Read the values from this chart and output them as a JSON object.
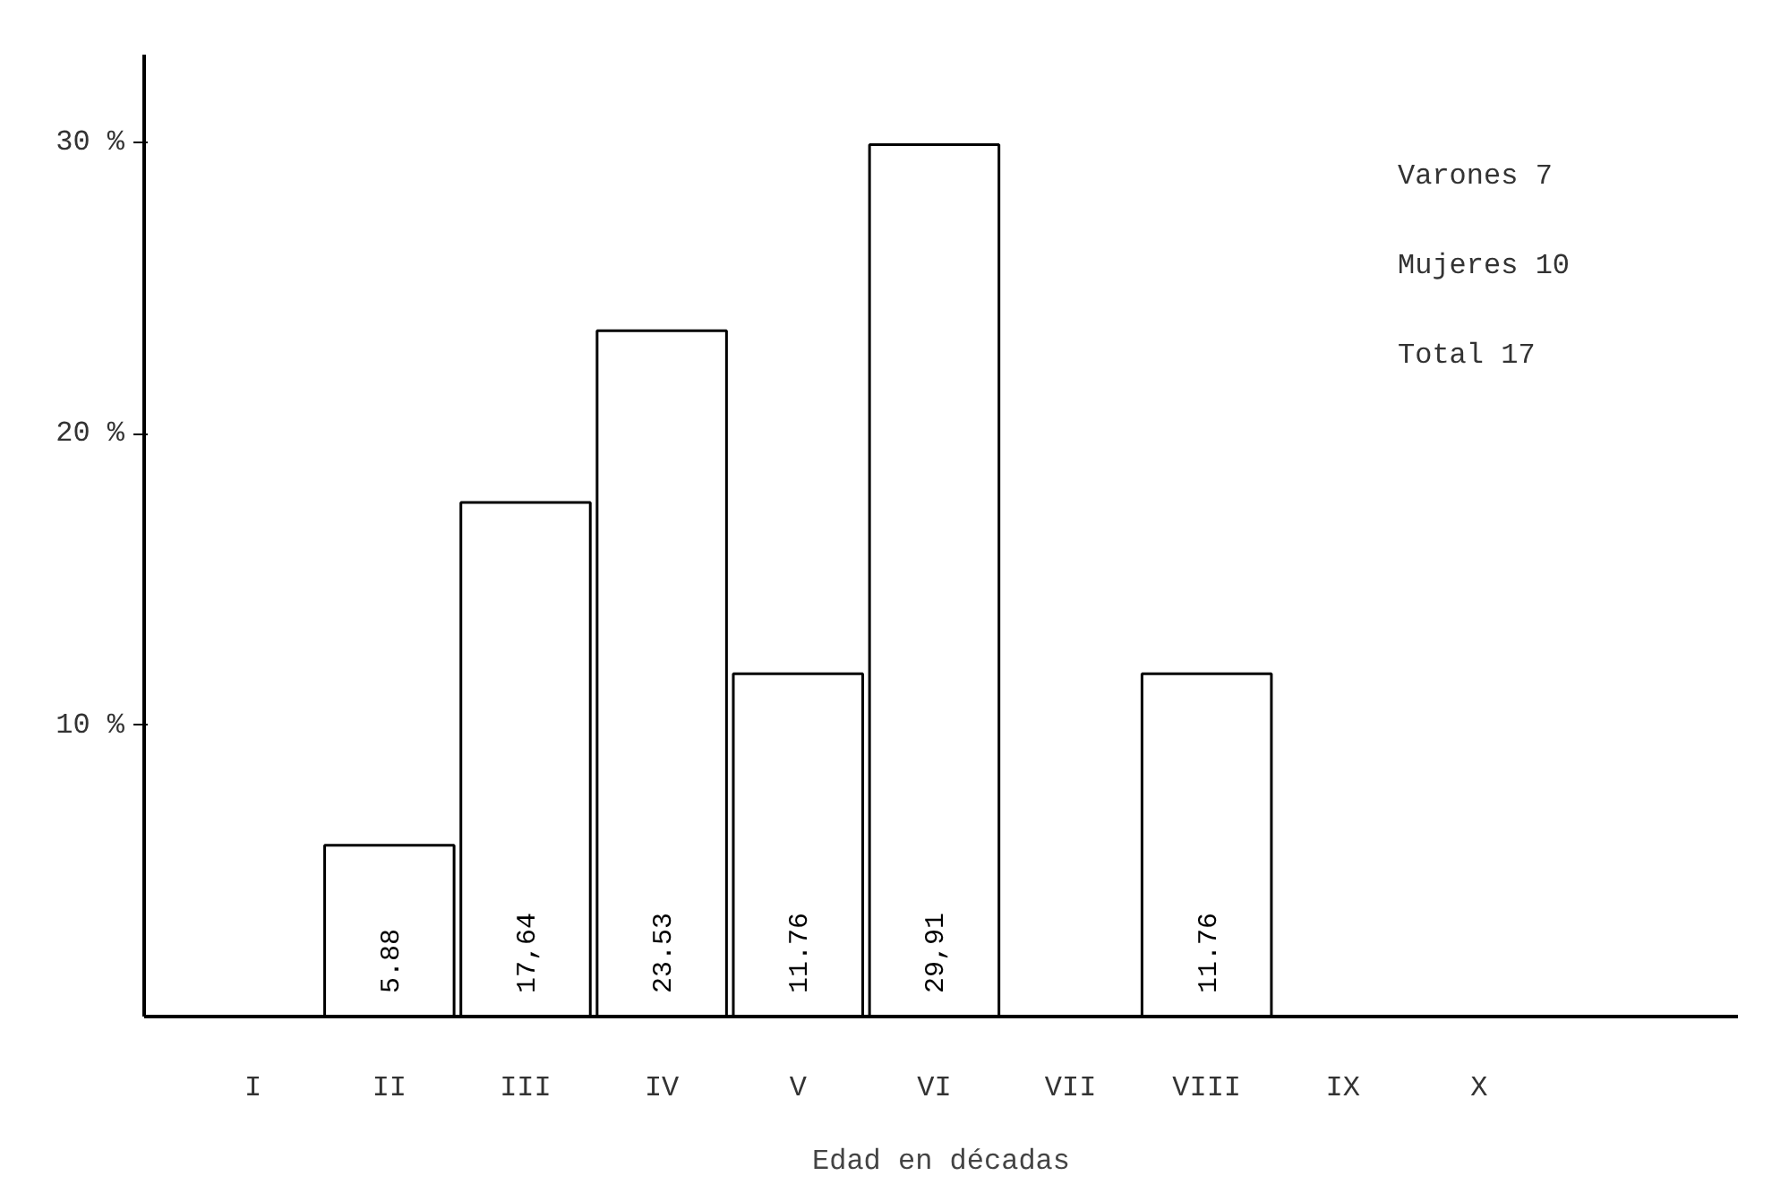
{
  "chart_data": {
    "type": "bar",
    "xlabel": "Edad en décadas",
    "categories": [
      "I",
      "II",
      "III",
      "IV",
      "V",
      "VI",
      "VII",
      "VIII",
      "IX",
      "X"
    ],
    "values": [
      null,
      5.88,
      17.64,
      23.53,
      11.76,
      29.91,
      null,
      11.76,
      null,
      null
    ],
    "value_labels": [
      null,
      "5.88",
      "17,64",
      "23.53",
      "11.76",
      "29,91",
      null,
      "11.76",
      null,
      null
    ],
    "color": "#ffffff",
    "ylim": [
      0,
      33
    ],
    "yticks": [
      {
        "value": 10,
        "label": "10 %"
      },
      {
        "value": 20,
        "label": "20 %"
      },
      {
        "value": 30,
        "label": "30 %"
      }
    ],
    "grid": false,
    "annotations": [
      "Varones 7",
      "Mujeres 10",
      "Total   17"
    ]
  }
}
